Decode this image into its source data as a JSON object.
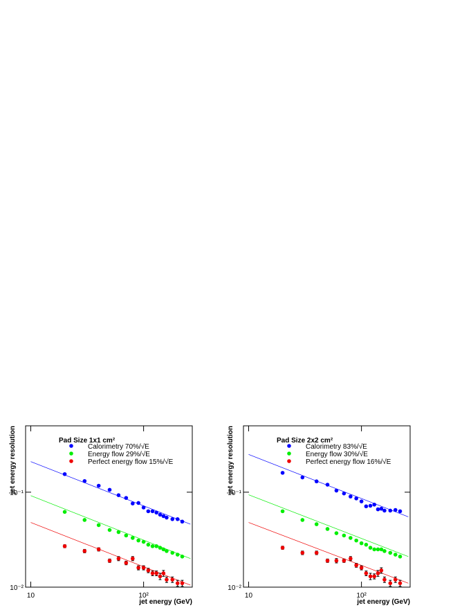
{
  "chart_data": [
    {
      "type": "scatter",
      "title": "Pad Size 1x1 cm²",
      "xlabel": "jet energy (GeV)",
      "ylabel": "jet energy resolution",
      "log_x": true,
      "log_y": true,
      "xlim": [
        9,
        270
      ],
      "ylim": [
        0.01,
        0.5
      ],
      "xticks": [
        10,
        {
          "value": 100,
          "label": "10²"
        }
      ],
      "yticks": [
        {
          "value": 0.01,
          "label": "10⁻²"
        },
        {
          "value": 0.1,
          "label": "10⁻¹"
        }
      ],
      "x": [
        20,
        30,
        40,
        50,
        60,
        70,
        80,
        90,
        100,
        110,
        120,
        130,
        140,
        150,
        160,
        180,
        200,
        220
      ],
      "series": [
        {
          "name": "Calorimetry 70%/√E",
          "color": "#0000ff",
          "values": [
            0.155,
            0.131,
            0.117,
            0.106,
            0.093,
            0.087,
            0.076,
            0.077,
            0.069,
            0.063,
            0.063,
            0.061,
            0.058,
            0.056,
            0.054,
            0.052,
            0.052,
            0.049
          ],
          "fit_x": [
            10,
            260
          ],
          "fit_values": [
            0.21,
            0.046
          ]
        },
        {
          "name": "Energy flow 29%/√E",
          "color": "#00ee00",
          "values": [
            0.062,
            0.051,
            0.045,
            0.04,
            0.038,
            0.035,
            0.033,
            0.031,
            0.03,
            0.028,
            0.027,
            0.027,
            0.026,
            0.025,
            0.024,
            0.023,
            0.022,
            0.021
          ],
          "fit_x": [
            10,
            260
          ],
          "fit_values": [
            0.092,
            0.02
          ]
        },
        {
          "name": "Perfect energy flow 15%/√E",
          "color": "#ee0000",
          "values": [
            0.027,
            0.024,
            0.025,
            0.019,
            0.02,
            0.018,
            0.02,
            0.016,
            0.016,
            0.015,
            0.014,
            0.014,
            0.013,
            0.014,
            0.012,
            0.012,
            0.011,
            0.011
          ],
          "errors": [
            0.001,
            0.001,
            0.001,
            0.0008,
            0.001,
            0.0008,
            0.001,
            0.0008,
            0.0008,
            0.0008,
            0.0008,
            0.0008,
            0.001,
            0.001,
            0.0008,
            0.0008,
            0.0008,
            0.0008
          ],
          "fit_x": [
            10,
            260
          ],
          "fit_values": [
            0.048,
            0.0105
          ]
        }
      ]
    },
    {
      "type": "scatter",
      "title": "Pad Size 2x2 cm²",
      "xlabel": "jet energy (GeV)",
      "ylabel": "jet energy resolution",
      "log_x": true,
      "log_y": true,
      "xlim": [
        9,
        270
      ],
      "ylim": [
        0.01,
        0.5
      ],
      "xticks": [
        10,
        {
          "value": 100,
          "label": "10²"
        }
      ],
      "yticks": [
        {
          "value": 0.01,
          "label": "10⁻²"
        },
        {
          "value": 0.1,
          "label": "10⁻¹"
        }
      ],
      "x": [
        20,
        30,
        40,
        50,
        60,
        70,
        80,
        90,
        100,
        110,
        120,
        130,
        140,
        150,
        160,
        180,
        200,
        220
      ],
      "series": [
        {
          "name": "Calorimetry 83%/√E",
          "color": "#0000ff",
          "values": [
            0.16,
            0.143,
            0.13,
            0.12,
            0.104,
            0.097,
            0.09,
            0.086,
            0.08,
            0.071,
            0.072,
            0.074,
            0.066,
            0.067,
            0.064,
            0.064,
            0.065,
            0.063
          ],
          "fit_x": [
            10,
            260
          ],
          "fit_values": [
            0.25,
            0.055
          ]
        },
        {
          "name": "Energy flow 30%/√E",
          "color": "#00ee00",
          "values": [
            0.063,
            0.051,
            0.046,
            0.041,
            0.037,
            0.035,
            0.033,
            0.031,
            0.029,
            0.028,
            0.026,
            0.025,
            0.025,
            0.025,
            0.024,
            0.023,
            0.022,
            0.021
          ],
          "fit_x": [
            10,
            260
          ],
          "fit_values": [
            0.094,
            0.021
          ]
        },
        {
          "name": "Perfect energy flow 16%/√E",
          "color": "#ee0000",
          "values": [
            0.026,
            0.023,
            0.023,
            0.019,
            0.019,
            0.019,
            0.02,
            0.017,
            0.016,
            0.014,
            0.013,
            0.013,
            0.014,
            0.015,
            0.012,
            0.011,
            0.012,
            0.011
          ],
          "errors": [
            0.001,
            0.001,
            0.001,
            0.0008,
            0.001,
            0.0008,
            0.001,
            0.0008,
            0.0008,
            0.0008,
            0.001,
            0.0008,
            0.001,
            0.001,
            0.0008,
            0.0008,
            0.0008,
            0.0008
          ],
          "fit_x": [
            10,
            260
          ],
          "fit_values": [
            0.048,
            0.011
          ]
        }
      ]
    }
  ]
}
